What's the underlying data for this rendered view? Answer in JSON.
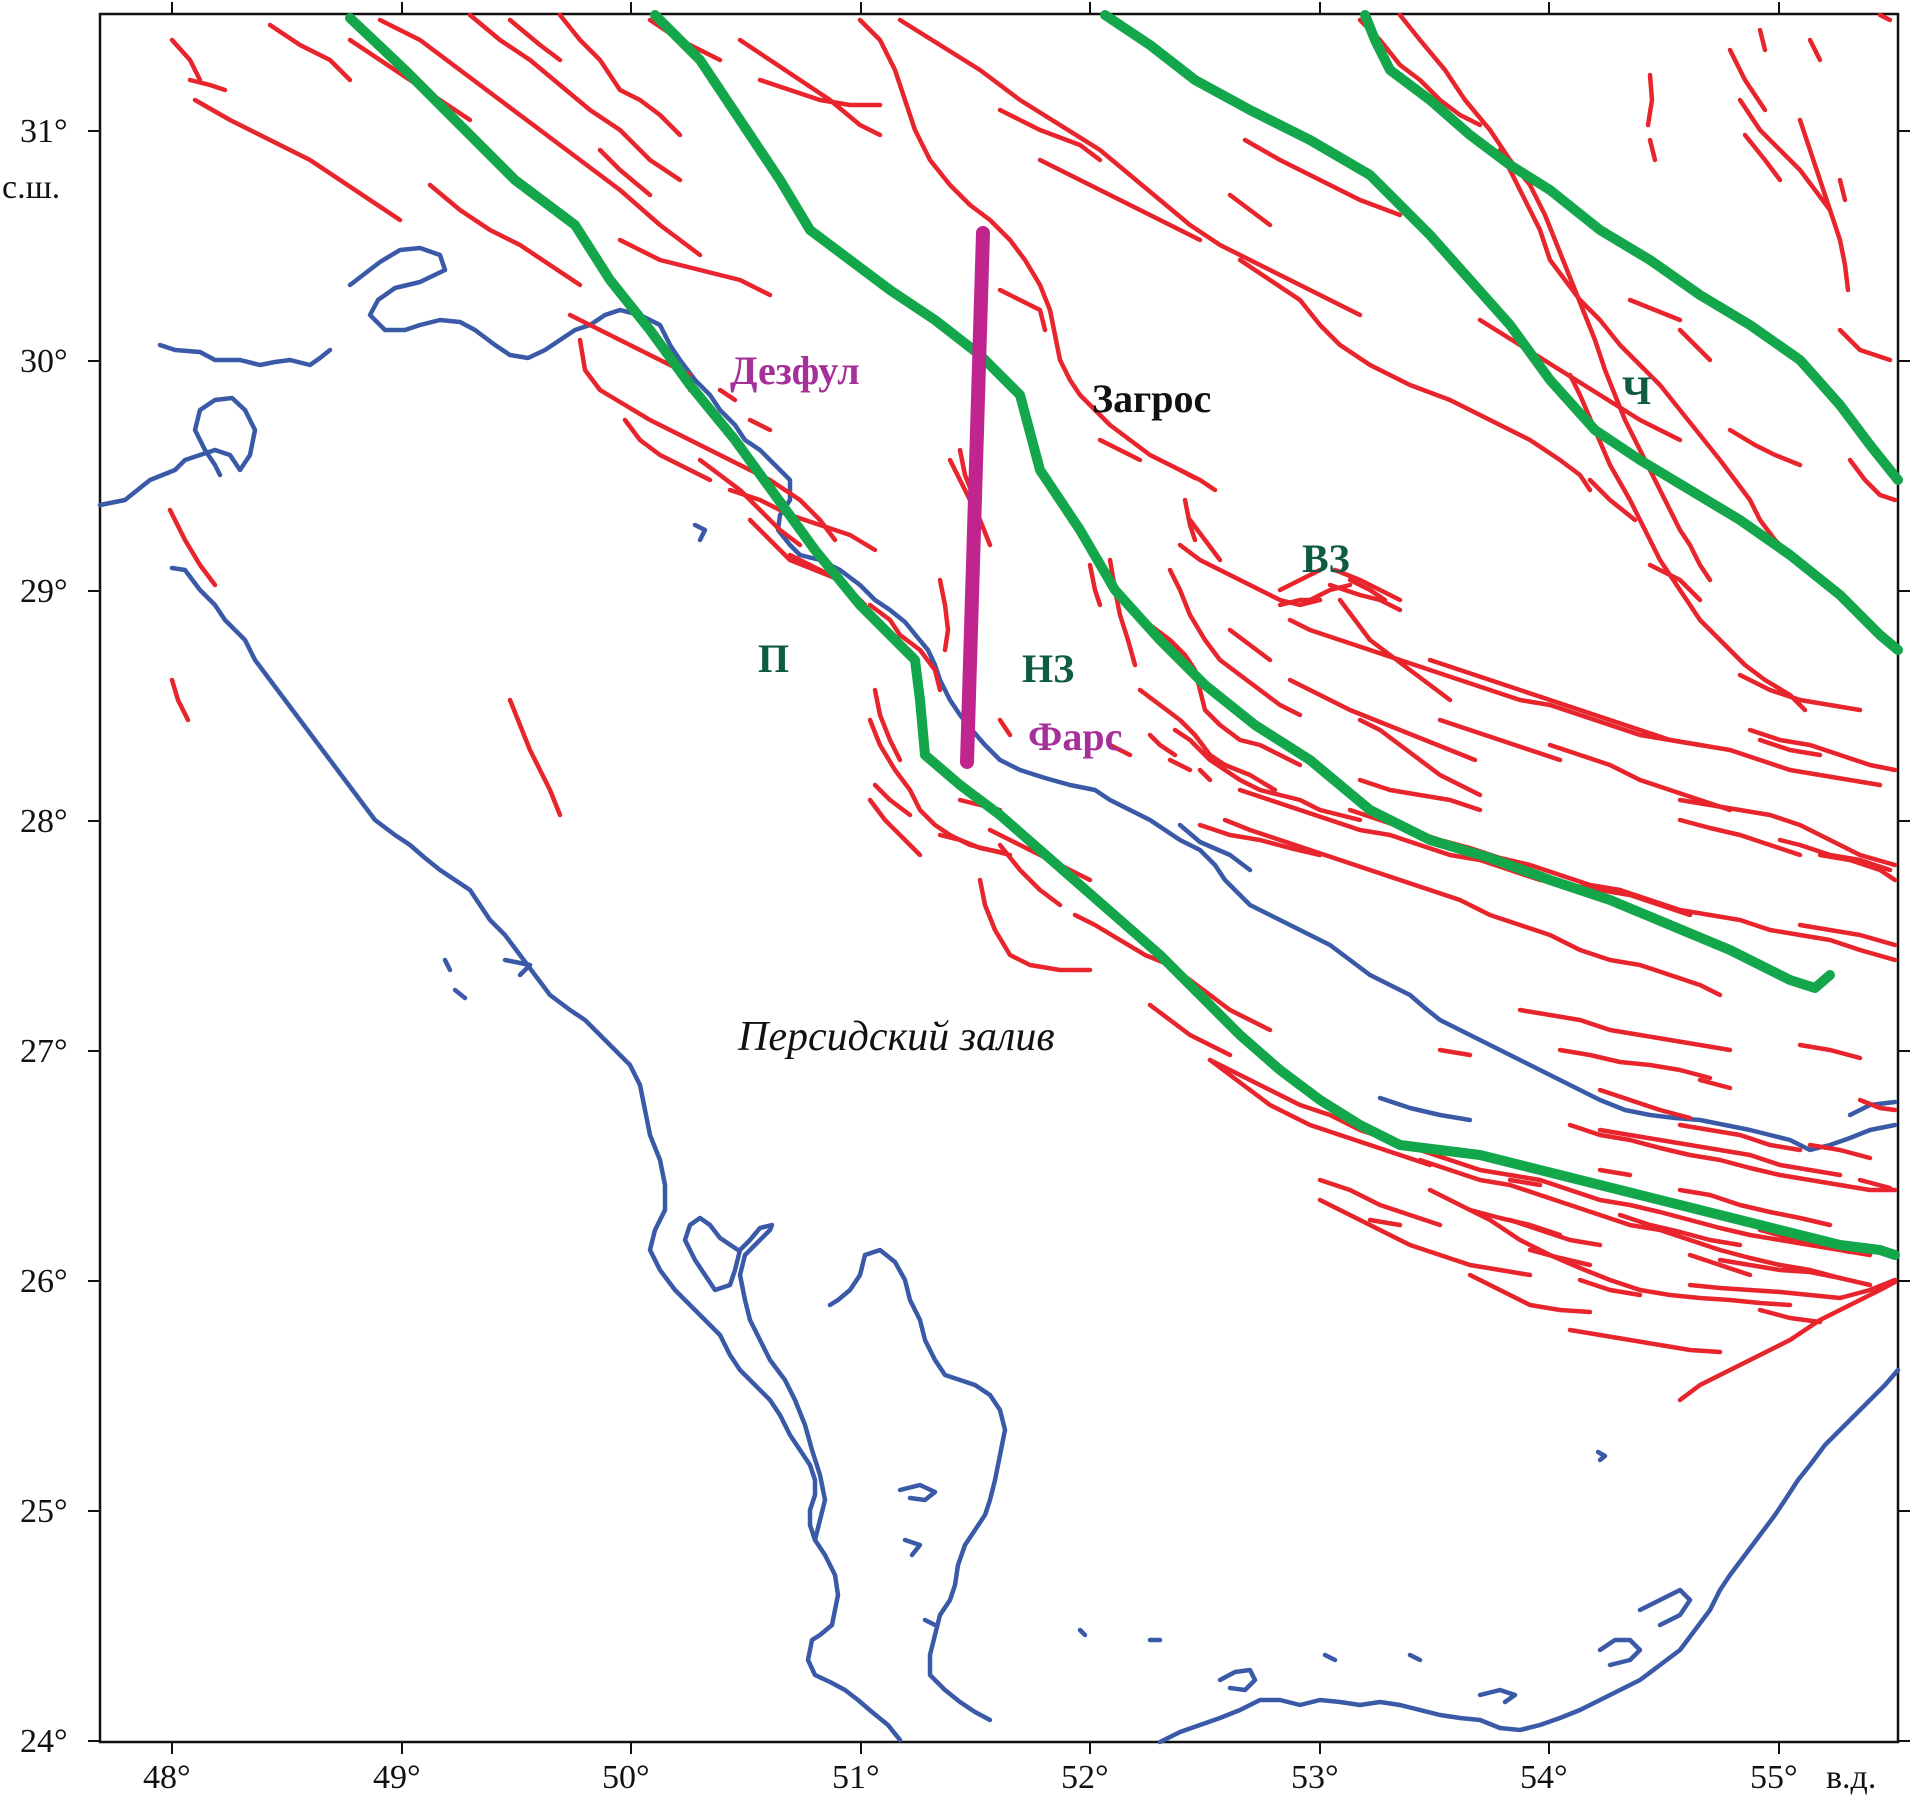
{
  "map": {
    "x_ticks": [
      "48°",
      "49°",
      "50°",
      "51°",
      "52°",
      "53°",
      "54°",
      "55°"
    ],
    "x_axis_unit": "в.д.",
    "y_ticks": [
      "31°",
      "30°",
      "29°",
      "28°",
      "27°",
      "26°",
      "25°",
      "24°"
    ],
    "y_axis_unit": "с.ш.",
    "labels": {
      "dezful": "Дезфул",
      "zagros": "Загрос",
      "ch": "Ч",
      "vz": "ВЗ",
      "p": "П",
      "nz": "НЗ",
      "fars": "Фарс",
      "gulf": "Персидский залив"
    },
    "colors": {
      "faults": "#e8242c",
      "zone_boundaries": "#13a64a",
      "coastline": "#3a5aa8",
      "profile": "#c0258f",
      "region_label_dark_green": "#0f5b45",
      "region_label_magenta": "#a6309a",
      "region_label_black": "#111111"
    }
  }
}
